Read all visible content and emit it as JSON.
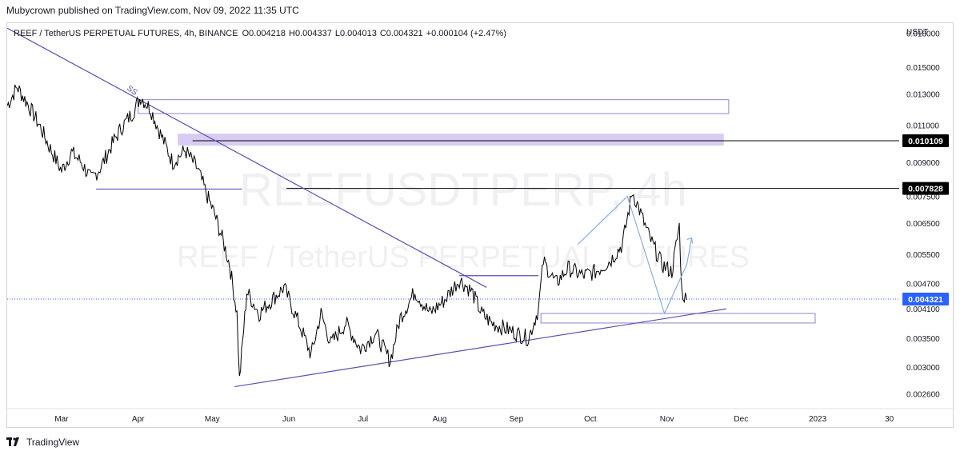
{
  "publisher_line": "Mubycrown published on TradingView.com, Nov 09, 2022 11:35 UTC",
  "symbol_header": {
    "name": "REEF / TetherUS PERPETUAL FUTURES, 4h, BINANCE",
    "open": "O0.004218",
    "high": "H0.004337",
    "low": "L0.004013",
    "close": "C0.004321",
    "change": "+0.000104 (+2.47%)"
  },
  "watermark": {
    "ticker": "REEFUSDTPERP, 4h",
    "description": "REEF / TetherUS PERPETUAL FUTURES"
  },
  "footer_brand": "TradingView",
  "colors": {
    "price_line": "#000000",
    "trendline": "#5b4fb5",
    "box_fill": "#d9ccf2",
    "projection": "#8aaee0",
    "current_price_tag": "#2962ff",
    "level_tag": "#000000"
  },
  "chart_data": {
    "type": "line",
    "title": "REEF / TetherUS PERPETUAL FUTURES, 4h, BINANCE",
    "xlabel": "",
    "ylabel": "USDT",
    "y_scale": "log",
    "ylim": [
      0.0024,
      0.019
    ],
    "y_ticks": [
      "0.018000",
      "0.015000",
      "0.013000",
      "0.011000",
      "0.009000",
      "0.007500",
      "0.006500",
      "0.005500",
      "0.004700",
      "0.004100",
      "0.003500",
      "0.003000",
      "0.002600"
    ],
    "x_ticks": [
      "Mar",
      "Apr",
      "May",
      "Jun",
      "Jul",
      "Aug",
      "Sep",
      "Oct",
      "Nov",
      "Dec",
      "2023",
      "30"
    ],
    "x_range": [
      "2022-02-07",
      "2023-02-03"
    ],
    "series": [
      {
        "x": [
          "2022-02-07",
          "2022-02-11",
          "2022-02-15",
          "2022-02-20",
          "2022-02-24",
          "2022-03-01",
          "2022-03-05",
          "2022-03-09",
          "2022-03-13",
          "2022-03-17",
          "2022-03-21",
          "2022-03-25",
          "2022-03-30",
          "2022-04-02",
          "2022-04-06",
          "2022-04-10",
          "2022-04-15",
          "2022-04-20",
          "2022-04-25",
          "2022-04-29",
          "2022-05-02",
          "2022-05-05",
          "2022-05-08",
          "2022-05-11",
          "2022-05-12",
          "2022-05-15",
          "2022-05-20",
          "2022-05-25",
          "2022-05-30",
          "2022-06-05",
          "2022-06-10",
          "2022-06-14",
          "2022-06-18",
          "2022-06-24",
          "2022-06-30",
          "2022-07-06",
          "2022-07-12",
          "2022-07-16",
          "2022-07-22",
          "2022-07-28",
          "2022-08-03",
          "2022-08-09",
          "2022-08-14",
          "2022-08-18",
          "2022-08-22",
          "2022-08-27",
          "2022-09-01",
          "2022-09-06",
          "2022-09-10",
          "2022-09-12",
          "2022-09-17",
          "2022-09-22",
          "2022-09-28",
          "2022-10-03",
          "2022-10-09",
          "2022-10-14",
          "2022-10-18",
          "2022-10-20",
          "2022-10-25",
          "2022-10-30",
          "2022-11-03",
          "2022-11-06",
          "2022-11-07",
          "2022-11-09"
        ],
        "y": [
          0.0122,
          0.0135,
          0.0124,
          0.011,
          0.0098,
          0.0086,
          0.0095,
          0.009,
          0.0082,
          0.0088,
          0.0098,
          0.0108,
          0.0118,
          0.0128,
          0.012,
          0.0105,
          0.009,
          0.0096,
          0.0087,
          0.0075,
          0.0068,
          0.006,
          0.0052,
          0.004,
          0.0028,
          0.0045,
          0.004,
          0.0043,
          0.0046,
          0.0038,
          0.0032,
          0.004,
          0.0034,
          0.0038,
          0.0033,
          0.0036,
          0.0031,
          0.0039,
          0.0045,
          0.004,
          0.0043,
          0.0048,
          0.0045,
          0.004,
          0.0038,
          0.0037,
          0.0036,
          0.0035,
          0.0041,
          0.0053,
          0.0047,
          0.0051,
          0.0049,
          0.005,
          0.0053,
          0.0058,
          0.0077,
          0.0072,
          0.006,
          0.0052,
          0.005,
          0.0064,
          0.0045,
          0.0043
        ]
      }
    ],
    "horizontal_levels": [
      {
        "price": 0.010109,
        "label": "0.010109",
        "from": "2022-04-23"
      },
      {
        "price": 0.007828,
        "label": "0.007828",
        "from": "2022-05-31"
      },
      {
        "price": 0.004321,
        "label": "0.004321",
        "current": true
      }
    ],
    "trendlines": [
      {
        "from": [
          "2022-02-07",
          0.0185
        ],
        "to": [
          "2022-08-20",
          0.0046
        ]
      },
      {
        "from": [
          "2022-05-10",
          0.0027
        ],
        "to": [
          "2022-11-25",
          0.0041
        ]
      },
      {
        "from": [
          "2022-03-15",
          0.0078
        ],
        "to": [
          "2022-05-13",
          0.0078
        ]
      },
      {
        "from": [
          "2022-08-09",
          0.0049
        ],
        "to": [
          "2022-09-10",
          0.0049
        ]
      }
    ],
    "zones": [
      {
        "x": [
          "2022-04-01",
          "2022-11-26"
        ],
        "y": [
          0.0117,
          0.0126
        ],
        "filled": false
      },
      {
        "x": [
          "2022-04-17",
          "2022-11-24"
        ],
        "y": [
          0.00985,
          0.0105
        ],
        "filled": true
      },
      {
        "x": [
          "2022-09-11",
          "2022-12-31"
        ],
        "y": [
          0.0038,
          0.004
        ],
        "filled": false
      }
    ],
    "projection_path": {
      "x": [
        "2022-09-26",
        "2022-10-16",
        "2022-10-31",
        "2022-11-09",
        "2022-11-11"
      ],
      "y": [
        0.0058,
        0.0075,
        0.004,
        0.0052,
        0.006
      ]
    },
    "annotations": [
      {
        "text": "SS",
        "x": "2022-03-29",
        "y": 0.0131
      }
    ],
    "legend": "none",
    "grid": false
  }
}
